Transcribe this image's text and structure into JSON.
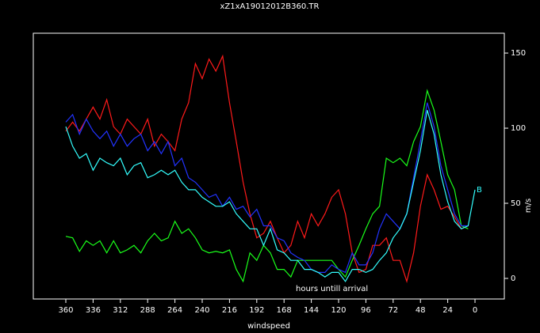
{
  "chart_data": {
    "type": "line",
    "title": "xZ1xA19012012B360.TR",
    "x_label": "windspeed",
    "y_label": "m/s",
    "annotation": "hours untill arrival",
    "end_label": "B",
    "x": [
      360,
      354,
      348,
      342,
      336,
      330,
      324,
      318,
      312,
      306,
      300,
      294,
      288,
      282,
      276,
      270,
      264,
      258,
      252,
      246,
      240,
      234,
      228,
      222,
      216,
      210,
      204,
      198,
      192,
      186,
      180,
      174,
      168,
      162,
      156,
      150,
      144,
      138,
      132,
      126,
      120,
      114,
      108,
      102,
      96,
      90,
      84,
      78,
      72,
      66,
      60,
      54,
      48,
      42,
      36,
      30,
      24,
      18,
      12,
      6,
      0
    ],
    "xlim": [
      388.6,
      -25.8
    ],
    "xticks": [
      360,
      336,
      312,
      288,
      264,
      240,
      216,
      192,
      168,
      144,
      120,
      96,
      72,
      48,
      24,
      0
    ],
    "ylim": [
      -13.7,
      163.2
    ],
    "yticks": [
      0,
      50,
      100,
      150
    ],
    "series": [
      {
        "color": "#ff1a1a",
        "values": [
          98,
          104,
          98,
          106,
          114,
          106,
          119,
          101,
          96,
          106,
          101,
          96,
          106,
          88,
          96,
          91,
          85,
          106,
          117,
          143,
          133,
          146,
          138,
          148,
          117,
          91,
          64,
          43,
          27,
          30,
          38,
          27,
          17,
          22,
          38,
          27,
          43,
          35,
          43,
          54,
          59,
          43,
          17,
          4,
          6,
          22,
          22,
          27,
          12,
          12,
          -2,
          17,
          48,
          69,
          59,
          46,
          48,
          41,
          33,
          35,
          null
        ]
      },
      {
        "color": "#1aff1a",
        "values": [
          28,
          27,
          18,
          25,
          22,
          25,
          17,
          25,
          17,
          19,
          22,
          17,
          25,
          30,
          25,
          27,
          38,
          30,
          33,
          27,
          19,
          17,
          18,
          17,
          19,
          6,
          -2,
          17,
          12,
          22,
          17,
          6,
          6,
          1,
          12,
          12,
          12,
          12,
          12,
          12,
          6,
          1,
          12,
          22,
          33,
          43,
          48,
          80,
          77,
          80,
          75,
          91,
          101,
          125,
          112,
          91,
          69,
          59,
          35,
          33,
          null
        ]
      },
      {
        "color": "#2233ff",
        "values": [
          104,
          109,
          96,
          106,
          98,
          93,
          98,
          88,
          96,
          88,
          93,
          96,
          85,
          91,
          83,
          91,
          75,
          80,
          67,
          64,
          59,
          54,
          56,
          48,
          54,
          46,
          48,
          41,
          46,
          35,
          35,
          27,
          25,
          17,
          14,
          12,
          6,
          4,
          4,
          9,
          6,
          4,
          17,
          9,
          9,
          17,
          33,
          43,
          38,
          33,
          43,
          67,
          91,
          117,
          101,
          75,
          59,
          43,
          35,
          35,
          null
        ]
      },
      {
        "color": "#33ffff",
        "values": [
          101,
          88,
          80,
          83,
          72,
          80,
          77,
          75,
          80,
          69,
          75,
          77,
          67,
          69,
          72,
          69,
          72,
          64,
          59,
          59,
          54,
          51,
          48,
          48,
          51,
          43,
          38,
          33,
          33,
          22,
          33,
          19,
          17,
          12,
          12,
          6,
          6,
          4,
          1,
          4,
          4,
          -2,
          6,
          6,
          4,
          6,
          12,
          17,
          27,
          33,
          43,
          64,
          85,
          112,
          96,
          69,
          51,
          38,
          33,
          35,
          59
        ]
      }
    ]
  }
}
